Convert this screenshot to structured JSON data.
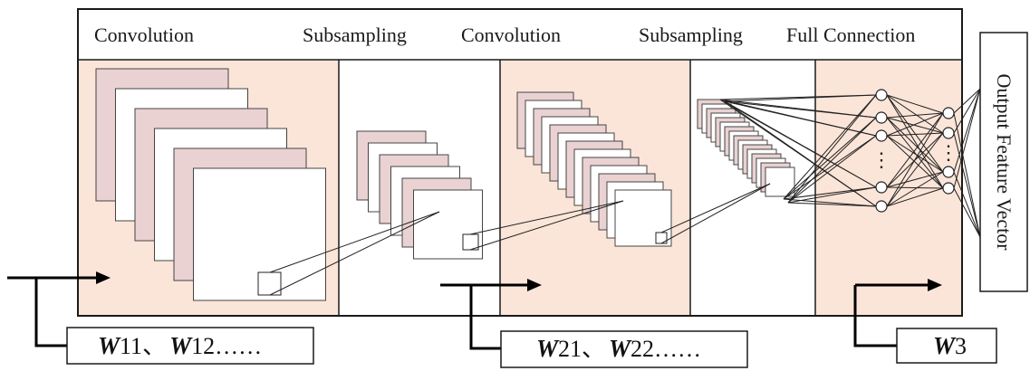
{
  "headers": {
    "conv1": "Convolution",
    "sub1": "Subsampling",
    "conv2": "Convolution",
    "sub2": "Subsampling",
    "full": "Full Connection"
  },
  "output_label": "Output Feature Vector",
  "weights": {
    "w1": {
      "var": "W",
      "a": "11",
      "sep": "、",
      "b": "12",
      "tail": "……"
    },
    "w2": {
      "var": "W",
      "a": "21",
      "sep": "、",
      "b": "22",
      "tail": "……"
    },
    "w3": {
      "var": "W",
      "a": "3"
    }
  },
  "neuron_ellipsis": "⋮",
  "colors": {
    "section_fill": "#fbe5d8",
    "map_pink": "#ead2d2",
    "line": "#1a1a1a"
  }
}
